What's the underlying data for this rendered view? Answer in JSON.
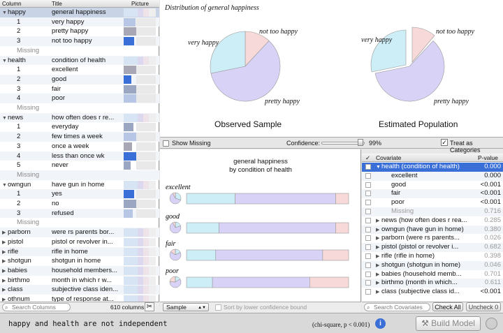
{
  "columns_panel": {
    "headers": {
      "column": "Column",
      "title": "Title",
      "picture": "Picture"
    },
    "rows": [
      {
        "type": "var",
        "col": "happy",
        "title": "general happiness",
        "sel": true
      },
      {
        "type": "val",
        "col": "1",
        "title": "very happy"
      },
      {
        "type": "val",
        "col": "2",
        "title": "pretty happy"
      },
      {
        "type": "val",
        "col": "3",
        "title": "not too happy"
      },
      {
        "type": "miss",
        "col": "Missing",
        "title": ""
      },
      {
        "type": "var",
        "col": "health",
        "title": "condition of health"
      },
      {
        "type": "val",
        "col": "1",
        "title": "excellent"
      },
      {
        "type": "val",
        "col": "2",
        "title": "good"
      },
      {
        "type": "val",
        "col": "3",
        "title": "fair"
      },
      {
        "type": "val",
        "col": "4",
        "title": "poor"
      },
      {
        "type": "miss",
        "col": "Missing",
        "title": ""
      },
      {
        "type": "var",
        "col": "news",
        "title": "how often does r re..."
      },
      {
        "type": "val",
        "col": "1",
        "title": "everyday"
      },
      {
        "type": "val",
        "col": "2",
        "title": "few times a week"
      },
      {
        "type": "val",
        "col": "3",
        "title": "once a week"
      },
      {
        "type": "val",
        "col": "4",
        "title": "less than once wk"
      },
      {
        "type": "val",
        "col": "5",
        "title": "never"
      },
      {
        "type": "miss",
        "col": "Missing",
        "title": ""
      },
      {
        "type": "var",
        "col": "owngun",
        "title": "have gun in home"
      },
      {
        "type": "val",
        "col": "1",
        "title": "yes"
      },
      {
        "type": "val",
        "col": "2",
        "title": "no"
      },
      {
        "type": "val",
        "col": "3",
        "title": "refused"
      },
      {
        "type": "miss",
        "col": "Missing",
        "title": ""
      },
      {
        "type": "closed",
        "col": "parborn",
        "title": "were rs parents bor..."
      },
      {
        "type": "closed",
        "col": "pistol",
        "title": "pistol or revolver in..."
      },
      {
        "type": "closed",
        "col": "rifle",
        "title": "rifle in home"
      },
      {
        "type": "closed",
        "col": "shotgun",
        "title": "shotgun in home"
      },
      {
        "type": "closed",
        "col": "babies",
        "title": "household members..."
      },
      {
        "type": "closed",
        "col": "birthmo",
        "title": "month in which r w..."
      },
      {
        "type": "closed",
        "col": "class",
        "title": "subjective class iden..."
      },
      {
        "type": "closed",
        "col": "othnum",
        "title": "type of response at..."
      }
    ],
    "search_placeholder": "Search Columns",
    "count_label": "610 columns"
  },
  "chart_header": "Distribution of general happiness",
  "pies": [
    {
      "caption": "Observed Sample",
      "labels": [
        "very happy",
        "not too happy",
        "pretty happy"
      ]
    },
    {
      "caption": "Estimated Population",
      "labels": [
        "very happy",
        "not too happy",
        "pretty happy"
      ]
    }
  ],
  "controls": {
    "show_missing": "Show Missing",
    "confidence_label": "Confidence:",
    "confidence_value": "99%",
    "treat_categories": "Treat as Categories"
  },
  "chart_data": {
    "type": "bar",
    "title": "general happiness",
    "subtitle": "by condition of health",
    "categories": [
      "excellent",
      "good",
      "fair",
      "poor"
    ],
    "series": [
      {
        "name": "very happy",
        "values": [
          0.3,
          0.2,
          0.18,
          0.16
        ]
      },
      {
        "name": "pretty happy",
        "values": [
          0.62,
          0.72,
          0.66,
          0.6
        ]
      },
      {
        "name": "not too happy",
        "values": [
          0.08,
          0.08,
          0.16,
          0.24
        ]
      }
    ],
    "colors": {
      "very happy": "#cdeef6",
      "pretty happy": "#d8d2f6",
      "not too happy": "#f7d9d9"
    }
  },
  "bars_footer": {
    "select_value": "Sample",
    "sort_label": "Sort by lower confidence bound"
  },
  "covariates": {
    "headers": {
      "check": "✓",
      "covariate": "Covariate",
      "pvalue": "P-value"
    },
    "rows": [
      {
        "name": "health (condition of health)",
        "p": "0.000",
        "kind": "head",
        "sel": true
      },
      {
        "name": "excellent",
        "p": "0.000",
        "kind": "sub"
      },
      {
        "name": "good",
        "p": "<0.001",
        "kind": "sub"
      },
      {
        "name": "fair",
        "p": "<0.001",
        "kind": "sub"
      },
      {
        "name": "poor",
        "p": "<0.001",
        "kind": "sub"
      },
      {
        "name": "Missing",
        "p": "0.716",
        "kind": "miss"
      },
      {
        "name": "news (how often does r rea...",
        "p": "0.285",
        "kind": "closed"
      },
      {
        "name": "owngun (have gun in home)",
        "p": "0.380",
        "kind": "closed"
      },
      {
        "name": "parborn (were rs parents...",
        "p": "0.026",
        "kind": "closed"
      },
      {
        "name": "pistol (pistol or revolver i...",
        "p": "0.682",
        "kind": "closed"
      },
      {
        "name": "rifle (rifle in home)",
        "p": "0.398",
        "kind": "closed"
      },
      {
        "name": "shotgun (shotgun in home)",
        "p": "0.046",
        "kind": "closed"
      },
      {
        "name": "babies (household memb...",
        "p": "0.701",
        "kind": "closed"
      },
      {
        "name": "birthmo (month in which...",
        "p": "0.611",
        "kind": "closed"
      },
      {
        "name": "class (subjective class id...",
        "p": "<0.001",
        "kind": "closed"
      }
    ],
    "search_placeholder": "Search Covariates",
    "check_all": "Check All",
    "uncheck": "Uncheck 0"
  },
  "status": {
    "message": "happy and health are not independent",
    "chi": "(chi-square, p < 0.001)",
    "build_model": "Build Model"
  }
}
